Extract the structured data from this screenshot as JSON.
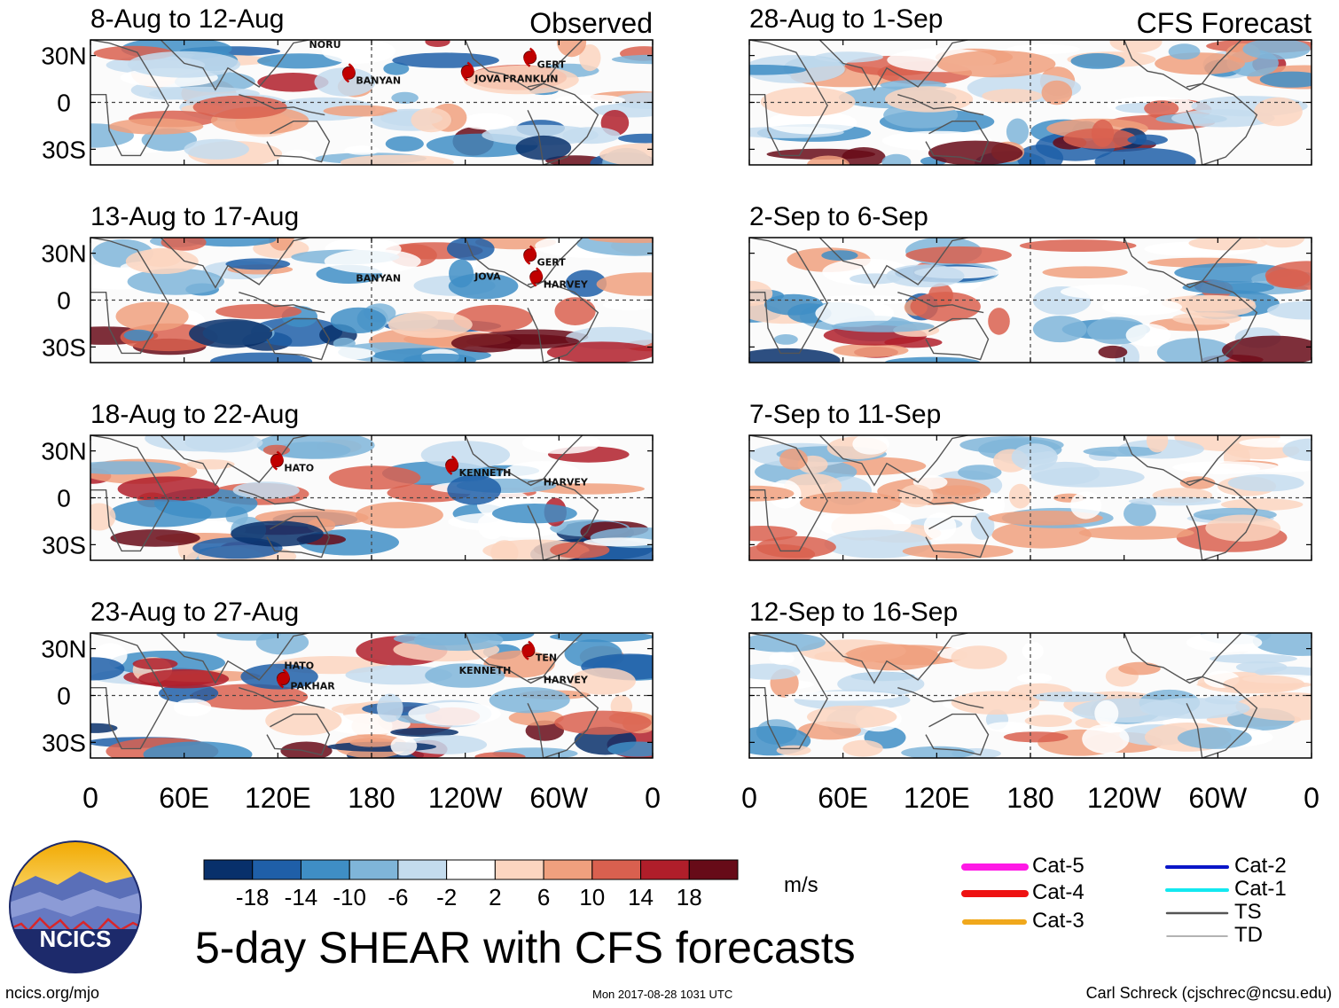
{
  "header": {
    "observed_label": "Observed",
    "forecast_label": "CFS Forecast"
  },
  "chart_data": {
    "type": "heatmap",
    "title": "5-day SHEAR with CFS forecasts",
    "variable_units": "m/s",
    "x_tick_labels": [
      "0",
      "60E",
      "120E",
      "180",
      "120W",
      "60W",
      "0"
    ],
    "x_tick_values_deg_east": [
      0,
      60,
      120,
      180,
      240,
      300,
      360
    ],
    "y_tick_labels": [
      "30N",
      "0",
      "30S"
    ],
    "y_tick_values_deg": [
      30,
      0,
      -30
    ],
    "ylim": [
      -40,
      40
    ],
    "xlim": [
      0,
      360
    ],
    "colorbar": {
      "levels": [
        -18,
        -14,
        -10,
        -6,
        -2,
        2,
        6,
        10,
        14,
        18
      ],
      "labels": [
        "-18",
        "-14",
        "-10",
        "-6",
        "-2",
        "2",
        "6",
        "10",
        "14",
        "18"
      ],
      "colors": [
        "#08306b",
        "#1f5fa8",
        "#3f8ec5",
        "#7fb5d9",
        "#c4dcee",
        "#ffffff",
        "#fcd5c0",
        "#f0a07e",
        "#d9604f",
        "#b01e2a",
        "#670b18"
      ]
    },
    "panels": [
      {
        "column": "observed",
        "period": "8-Aug to 12-Aug",
        "storms": [
          "NORU",
          "BANYAN",
          "JOVA",
          "FRANKLIN",
          "GERT"
        ]
      },
      {
        "column": "observed",
        "period": "13-Aug to 17-Aug",
        "storms": [
          "BANYAN",
          "JOVA",
          "GERT",
          "HARVEY"
        ]
      },
      {
        "column": "observed",
        "period": "18-Aug to 22-Aug",
        "storms": [
          "HATO",
          "KENNETH",
          "HARVEY"
        ]
      },
      {
        "column": "observed",
        "period": "23-Aug to 27-Aug",
        "storms": [
          "HATO",
          "PAKHAR",
          "KENNETH",
          "HARVEY",
          "TEN"
        ]
      },
      {
        "column": "forecast",
        "period": "28-Aug to 1-Sep",
        "storms": []
      },
      {
        "column": "forecast",
        "period": "2-Sep to 6-Sep",
        "storms": []
      },
      {
        "column": "forecast",
        "period": "7-Sep to 11-Sep",
        "storms": []
      },
      {
        "column": "forecast",
        "period": "12-Sep to 16-Sep",
        "storms": []
      }
    ]
  },
  "track_legend": [
    {
      "label": "Cat-5",
      "color": "#ff19e6"
    },
    {
      "label": "Cat-4",
      "color": "#ee1111"
    },
    {
      "label": "Cat-3",
      "color": "#f0a81c"
    },
    {
      "label": "Cat-2",
      "color": "#0a16c8"
    },
    {
      "label": "Cat-1",
      "color": "#13e8f0"
    },
    {
      "label": "TS",
      "color": "#555555"
    },
    {
      "label": "TD",
      "color": "#9a9a9a"
    }
  ],
  "logo": {
    "text": "NCICS"
  },
  "footer": {
    "url": "ncics.org/mjo",
    "timestamp": "Mon 2017-08-28 1031 UTC",
    "credit": "Carl Schreck (cjschrec@ncsu.edu)"
  }
}
